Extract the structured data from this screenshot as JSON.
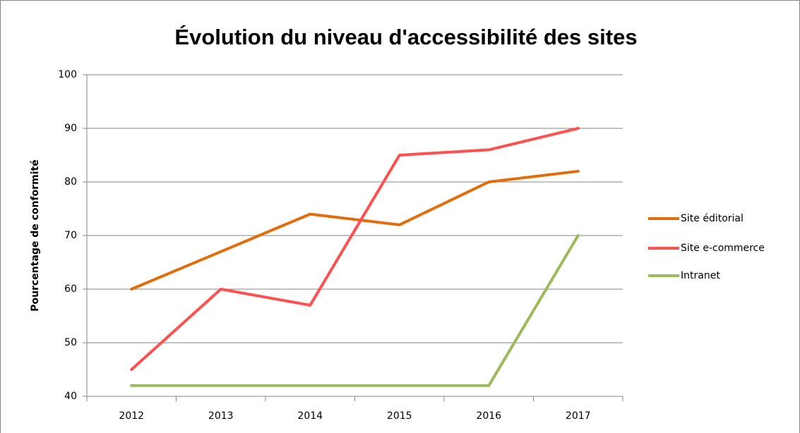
{
  "chart_data": {
    "type": "line",
    "title": "Évolution du niveau d'accessibilité des sites",
    "y_label": "Pourcentage de conformité",
    "categories": [
      "2012",
      "2013",
      "2014",
      "2015",
      "2016",
      "2017"
    ],
    "series": [
      {
        "name": "Site éditorial",
        "color": "#e46c0a",
        "values": [
          60,
          67,
          74,
          72,
          80,
          82
        ]
      },
      {
        "name": "Site e-commerce",
        "color": "#ff5050",
        "values": [
          45,
          60,
          57,
          85,
          86,
          90
        ]
      },
      {
        "name": "Intranet",
        "color": "#9bbb59",
        "values": [
          42,
          42,
          42,
          42,
          42,
          70
        ]
      }
    ],
    "ylim": [
      40,
      100
    ],
    "yticks": [
      40,
      50,
      60,
      70,
      80,
      90,
      100
    ],
    "grid": true,
    "legend": "right"
  }
}
